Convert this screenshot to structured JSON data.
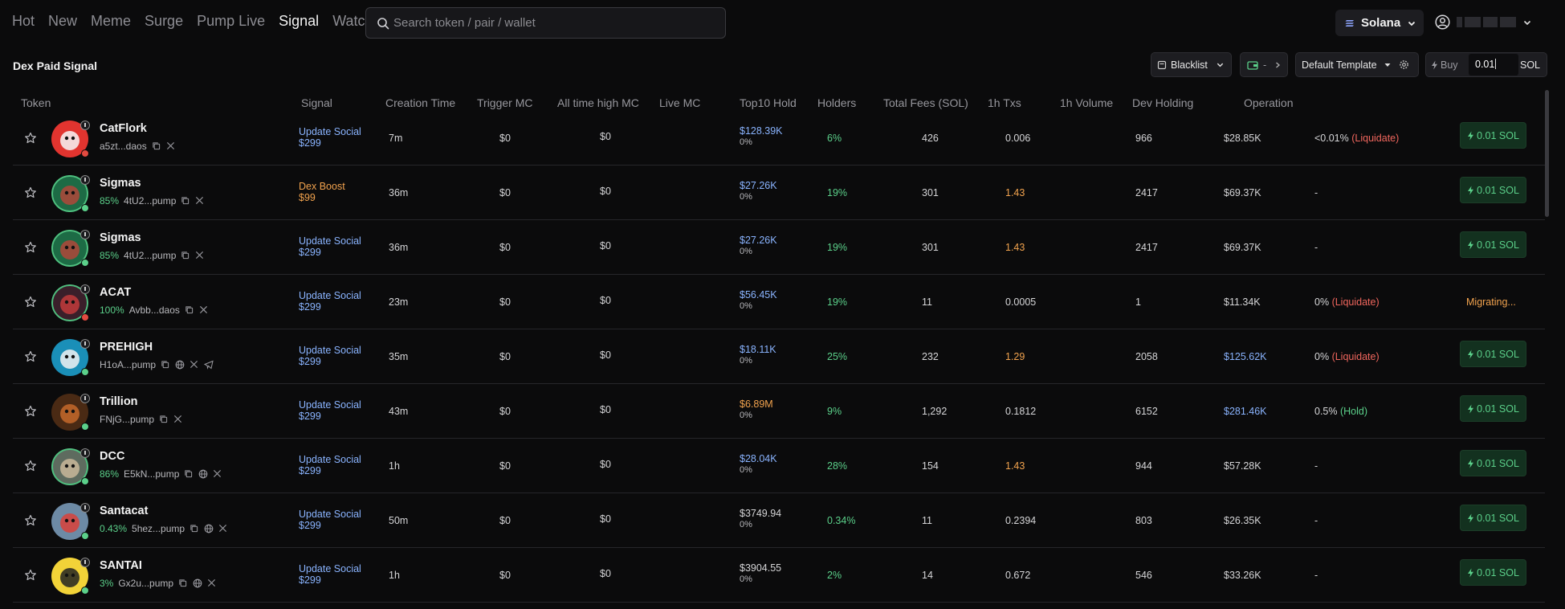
{
  "nav": {
    "tabs": [
      {
        "label": "Hot",
        "active": false
      },
      {
        "label": "New",
        "active": false
      },
      {
        "label": "Meme",
        "active": false
      },
      {
        "label": "Surge",
        "active": false
      },
      {
        "label": "Pump Live",
        "active": false
      },
      {
        "label": "Signal",
        "active": true
      },
      {
        "label": "Watchlist",
        "active": false
      }
    ]
  },
  "search": {
    "placeholder": "Search token / pair / wallet",
    "value": "",
    "icon": "search-icon"
  },
  "chain": {
    "label": "Solana",
    "icon": "solana-icon"
  },
  "user": {
    "icon": "user-circle-icon"
  },
  "page": {
    "title": "Dex Paid Signal"
  },
  "controls": {
    "blacklist_label": "Blacklist",
    "wallet_value": "-",
    "template_label": "Default Template",
    "buy_label": "Buy",
    "buy_amount": "0.01",
    "buy_unit": "SOL"
  },
  "columns": [
    "Token",
    "Signal",
    "Creation Time",
    "Trigger MC",
    "All time high MC",
    "Live MC",
    "Top10 Hold",
    "Holders",
    "Total Fees (SOL)",
    "1h Txs",
    "1h Volume",
    "Dev Holding",
    "Operation"
  ],
  "rows": [
    {
      "name": "CatFlork",
      "pct": "",
      "addr": "a5zt...daos",
      "links": [
        "copy",
        "x"
      ],
      "signal": "Update Social",
      "price": "$299",
      "signal_type": "social",
      "created": "7m",
      "trigger_mc": "$0",
      "ath_mc": "$0",
      "live_mc": "$128.39K",
      "live_mc_color": "blue",
      "live_pct": "0%",
      "top10": "6%",
      "holders": "426",
      "fees": "0.006",
      "fees_color": "white",
      "txs": "966",
      "volume": "$28.85K",
      "volume_color": "white",
      "dev": "<0.01%",
      "dev_note": "(Liquidate)",
      "dev_note_color": "red",
      "operation": "0.01 SOL",
      "avatar_bg": "#e2342f",
      "avatar_fg": "#f7f7f7",
      "ring": "none",
      "badge": "#e34a40"
    },
    {
      "name": "Sigmas",
      "pct": "85%",
      "addr": "4tU2...pump",
      "links": [
        "copy",
        "x"
      ],
      "signal": "Dex Boost",
      "price": "$99",
      "signal_type": "boost",
      "created": "36m",
      "trigger_mc": "$0",
      "ath_mc": "$0",
      "live_mc": "$27.26K",
      "live_mc_color": "blue",
      "live_pct": "0%",
      "top10": "19%",
      "holders": "301",
      "fees": "1.43",
      "fees_color": "orange",
      "txs": "2417",
      "volume": "$69.37K",
      "volume_color": "white",
      "dev": "-",
      "dev_note": "",
      "dev_note_color": "",
      "operation": "0.01 SOL",
      "avatar_bg": "#1d6b45",
      "avatar_fg": "#b0473a",
      "ring": "#4fc07f",
      "badge": "#5bd08a"
    },
    {
      "name": "Sigmas",
      "pct": "85%",
      "addr": "4tU2...pump",
      "links": [
        "copy",
        "x"
      ],
      "signal": "Update Social",
      "price": "$299",
      "signal_type": "social",
      "created": "36m",
      "trigger_mc": "$0",
      "ath_mc": "$0",
      "live_mc": "$27.26K",
      "live_mc_color": "blue",
      "live_pct": "0%",
      "top10": "19%",
      "holders": "301",
      "fees": "1.43",
      "fees_color": "orange",
      "txs": "2417",
      "volume": "$69.37K",
      "volume_color": "white",
      "dev": "-",
      "dev_note": "",
      "dev_note_color": "",
      "operation": "0.01 SOL",
      "avatar_bg": "#1d6b45",
      "avatar_fg": "#b0473a",
      "ring": "#4fc07f",
      "badge": "#5bd08a"
    },
    {
      "name": "ACAT",
      "pct": "100%",
      "addr": "Avbb...daos",
      "links": [
        "copy",
        "x"
      ],
      "signal": "Update Social",
      "price": "$299",
      "signal_type": "social",
      "created": "23m",
      "trigger_mc": "$0",
      "ath_mc": "$0",
      "live_mc": "$56.45K",
      "live_mc_color": "blue",
      "live_pct": "0%",
      "top10": "19%",
      "holders": "11",
      "fees": "0.0005",
      "fees_color": "white",
      "txs": "1",
      "volume": "$11.34K",
      "volume_color": "white",
      "dev": "0%",
      "dev_note": "(Liquidate)",
      "dev_note_color": "red",
      "operation": "Migrating...",
      "avatar_bg": "#3a1f2a",
      "avatar_fg": "#c23b3b",
      "ring": "#4fc07f",
      "badge": "#e34a40"
    },
    {
      "name": "PREHIGH",
      "pct": "",
      "addr": "H1oA...pump",
      "links": [
        "copy",
        "web",
        "x",
        "telegram"
      ],
      "signal": "Update Social",
      "price": "$299",
      "signal_type": "social",
      "created": "35m",
      "trigger_mc": "$0",
      "ath_mc": "$0",
      "live_mc": "$18.11K",
      "live_mc_color": "blue",
      "live_pct": "0%",
      "top10": "25%",
      "holders": "232",
      "fees": "1.29",
      "fees_color": "orange",
      "txs": "2058",
      "volume": "$125.62K",
      "volume_color": "blue",
      "dev": "0%",
      "dev_note": "(Liquidate)",
      "dev_note_color": "red",
      "operation": "0.01 SOL",
      "avatar_bg": "#1a8fb8",
      "avatar_fg": "#f2f2f2",
      "ring": "none",
      "badge": "#5bd08a"
    },
    {
      "name": "Trillion",
      "pct": "",
      "addr": "FNjG...pump",
      "links": [
        "copy",
        "x"
      ],
      "signal": "Update Social",
      "price": "$299",
      "signal_type": "social",
      "created": "43m",
      "trigger_mc": "$0",
      "ath_mc": "$0",
      "live_mc": "$6.89M",
      "live_mc_color": "orange",
      "live_pct": "0%",
      "top10": "9%",
      "holders": "1,292",
      "fees": "0.1812",
      "fees_color": "white",
      "txs": "6152",
      "volume": "$281.46K",
      "volume_color": "blue",
      "dev": "0.5%",
      "dev_note": "(Hold)",
      "dev_note_color": "green",
      "operation": "0.01 SOL",
      "avatar_bg": "#4a2a14",
      "avatar_fg": "#c4682a",
      "ring": "none",
      "badge": "#5bd08a"
    },
    {
      "name": "DCC",
      "pct": "86%",
      "addr": "E5kN...pump",
      "links": [
        "copy",
        "web",
        "x"
      ],
      "signal": "Update Social",
      "price": "$299",
      "signal_type": "social",
      "created": "1h",
      "trigger_mc": "$0",
      "ath_mc": "$0",
      "live_mc": "$28.04K",
      "live_mc_color": "blue",
      "live_pct": "0%",
      "top10": "28%",
      "holders": "154",
      "fees": "1.43",
      "fees_color": "orange",
      "txs": "944",
      "volume": "$57.28K",
      "volume_color": "white",
      "dev": "-",
      "dev_note": "",
      "dev_note_color": "",
      "operation": "0.01 SOL",
      "avatar_bg": "#5e6b5f",
      "avatar_fg": "#c9b79a",
      "ring": "#4fc07f",
      "badge": "#5bd08a"
    },
    {
      "name": "Santacat",
      "pct": "0.43%",
      "addr": "5hez...pump",
      "links": [
        "copy",
        "web",
        "x"
      ],
      "signal": "Update Social",
      "price": "$299",
      "signal_type": "social",
      "created": "50m",
      "trigger_mc": "$0",
      "ath_mc": "$0",
      "live_mc": "$3749.94",
      "live_mc_color": "white",
      "live_pct": "0%",
      "top10": "0.34%",
      "holders": "11",
      "fees": "0.2394",
      "fees_color": "white",
      "txs": "803",
      "volume": "$26.35K",
      "volume_color": "white",
      "dev": "-",
      "dev_note": "",
      "dev_note_color": "",
      "operation": "0.01 SOL",
      "avatar_bg": "#6d8aa5",
      "avatar_fg": "#d9413a",
      "ring": "none",
      "badge": "#5bd08a"
    },
    {
      "name": "SANTAI",
      "pct": "3%",
      "addr": "Gx2u...pump",
      "links": [
        "copy",
        "web",
        "x"
      ],
      "signal": "Update Social",
      "price": "$299",
      "signal_type": "social",
      "created": "1h",
      "trigger_mc": "$0",
      "ath_mc": "$0",
      "live_mc": "$3904.55",
      "live_mc_color": "white",
      "live_pct": "0%",
      "top10": "2%",
      "holders": "14",
      "fees": "0.672",
      "fees_color": "white",
      "txs": "546",
      "volume": "$33.26K",
      "volume_color": "white",
      "dev": "-",
      "dev_note": "",
      "dev_note_color": "",
      "operation": "0.01 SOL",
      "avatar_bg": "#f2d338",
      "avatar_fg": "#222222",
      "ring": "none",
      "badge": "#5bd08a"
    }
  ]
}
